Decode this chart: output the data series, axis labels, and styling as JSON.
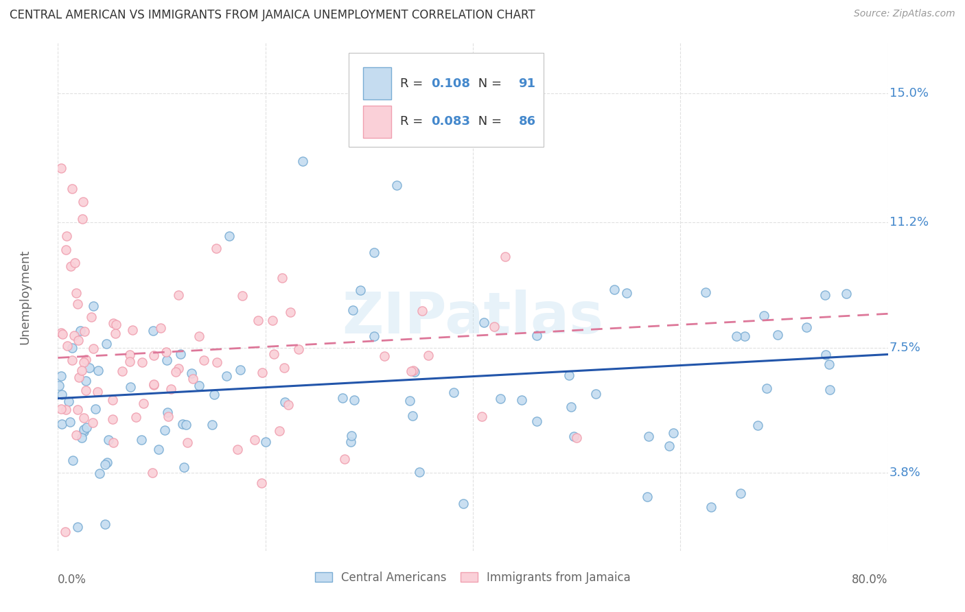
{
  "title": "CENTRAL AMERICAN VS IMMIGRANTS FROM JAMAICA UNEMPLOYMENT CORRELATION CHART",
  "source": "Source: ZipAtlas.com",
  "ylabel": "Unemployment",
  "ytick_labels": [
    "3.8%",
    "7.5%",
    "11.2%",
    "15.0%"
  ],
  "ytick_vals": [
    3.8,
    7.5,
    11.2,
    15.0
  ],
  "xlim": [
    0.0,
    80.0
  ],
  "ylim": [
    1.5,
    16.5
  ],
  "blue_edge_color": "#7aadd4",
  "blue_face_color": "#c5dcf0",
  "pink_edge_color": "#f0a0b0",
  "pink_face_color": "#fad0d8",
  "blue_line_color": "#2255aa",
  "pink_line_color": "#dd7799",
  "R_blue": "0.108",
  "N_blue": "91",
  "R_pink": "0.083",
  "N_pink": "86",
  "legend_label_blue": "Central Americans",
  "legend_label_pink": "Immigrants from Jamaica",
  "watermark": "ZIPatlas",
  "background_color": "#ffffff",
  "grid_color": "#e0e0e0",
  "accent_color": "#4488cc",
  "text_color": "#333333",
  "axis_label_color": "#666666"
}
